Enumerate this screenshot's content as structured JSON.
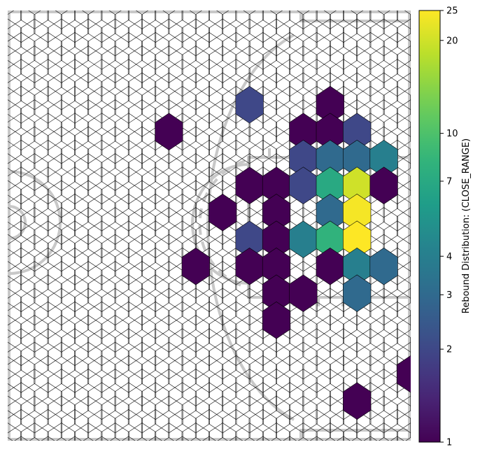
{
  "chart_data": {
    "type": "heatmap",
    "subtype": "hexbin",
    "background": "basketball half-court diagram",
    "colormap": "viridis",
    "color_scale": "log",
    "colorbar": {
      "label": "Rebound Distribution: (CLOSE_RANGE)",
      "ticks": [
        1,
        2,
        3,
        4,
        7,
        10,
        20,
        25
      ],
      "range": [
        1,
        25
      ]
    },
    "axes_visible": false,
    "cells": [
      {
        "col": 9,
        "row": 3.5,
        "value": 2
      },
      {
        "col": 12,
        "row": 3.5,
        "value": 1
      },
      {
        "col": 6,
        "row": 4.5,
        "value": 1
      },
      {
        "col": 11,
        "row": 4.5,
        "value": 1
      },
      {
        "col": 12,
        "row": 4.5,
        "value": 1
      },
      {
        "col": 13,
        "row": 4.5,
        "value": 2
      },
      {
        "col": 11,
        "row": 5.5,
        "value": 2
      },
      {
        "col": 12,
        "row": 5.5,
        "value": 3
      },
      {
        "col": 13,
        "row": 5.5,
        "value": 3
      },
      {
        "col": 14,
        "row": 5.5,
        "value": 4
      },
      {
        "col": 9,
        "row": 6.5,
        "value": 1
      },
      {
        "col": 10,
        "row": 6.5,
        "value": 1
      },
      {
        "col": 11,
        "row": 6.5,
        "value": 2
      },
      {
        "col": 12,
        "row": 6.5,
        "value": 7
      },
      {
        "col": 13,
        "row": 6.5,
        "value": 20
      },
      {
        "col": 14,
        "row": 6.5,
        "value": 1
      },
      {
        "col": 8,
        "row": 7.5,
        "value": 1
      },
      {
        "col": 10,
        "row": 7.5,
        "value": 1
      },
      {
        "col": 12,
        "row": 7.5,
        "value": 3
      },
      {
        "col": 13,
        "row": 7.5,
        "value": 24
      },
      {
        "col": 9,
        "row": 8.5,
        "value": 2
      },
      {
        "col": 10,
        "row": 8.5,
        "value": 1
      },
      {
        "col": 11,
        "row": 8.5,
        "value": 4
      },
      {
        "col": 12,
        "row": 8.5,
        "value": 8
      },
      {
        "col": 13,
        "row": 8.5,
        "value": 25
      },
      {
        "col": 7,
        "row": 9.5,
        "value": 1
      },
      {
        "col": 9,
        "row": 9.5,
        "value": 1
      },
      {
        "col": 10,
        "row": 9.5,
        "value": 1
      },
      {
        "col": 12,
        "row": 9.5,
        "value": 1
      },
      {
        "col": 13,
        "row": 9.5,
        "value": 4
      },
      {
        "col": 14,
        "row": 9.5,
        "value": 3
      },
      {
        "col": 10,
        "row": 10.5,
        "value": 1
      },
      {
        "col": 11,
        "row": 10.5,
        "value": 1
      },
      {
        "col": 13,
        "row": 10.5,
        "value": 3
      },
      {
        "col": 10,
        "row": 11.5,
        "value": 1
      },
      {
        "col": 15,
        "row": 13.5,
        "value": 1
      },
      {
        "col": 13,
        "row": 14.5,
        "value": 1
      }
    ]
  },
  "colors": {
    "court_lines": "#c8c8c8",
    "hex_edge": "#000000"
  }
}
